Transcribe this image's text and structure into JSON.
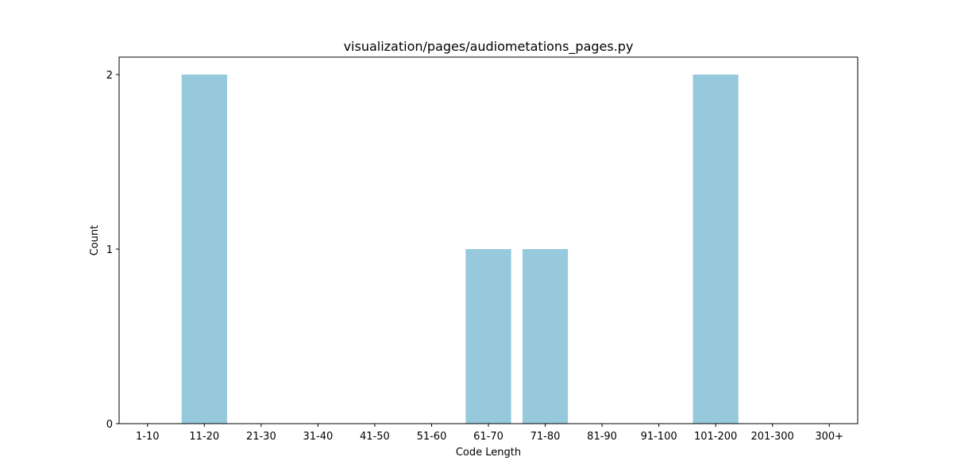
{
  "chart_data": {
    "type": "bar",
    "title": "visualization/pages/audiometations_pages.py",
    "xlabel": "Code Length",
    "ylabel": "Count",
    "categories": [
      "1-10",
      "11-20",
      "21-30",
      "31-40",
      "41-50",
      "51-60",
      "61-70",
      "71-80",
      "81-90",
      "91-100",
      "101-200",
      "201-300",
      "300+"
    ],
    "values": [
      0,
      2,
      0,
      0,
      0,
      0,
      1,
      1,
      0,
      0,
      2,
      0,
      0
    ],
    "ylim": [
      0,
      2.1
    ],
    "yticks": [
      0,
      1,
      2
    ],
    "bar_color": "#96c9dc",
    "grid": false,
    "legend": "none"
  }
}
